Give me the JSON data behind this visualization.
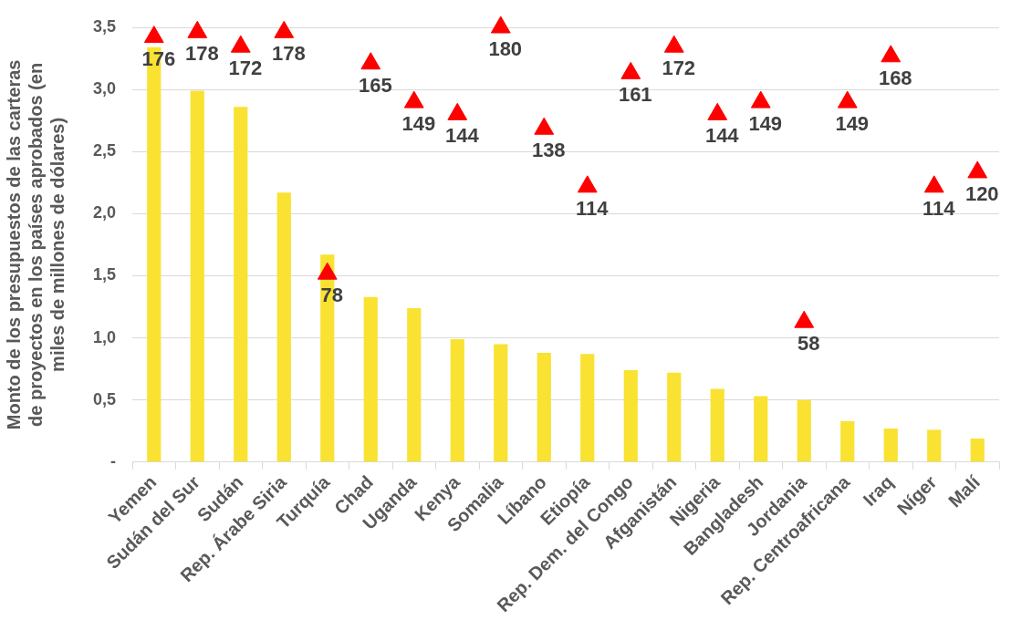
{
  "chart_data": {
    "type": "bar",
    "ylabel": "Monto de los presupuestos de las carteras de proyectos en los países aprobados (en miles de millones de dólares)",
    "categories": [
      "Yemen",
      "Sudán del Sur",
      "Sudán",
      "Rep. Árabe Siria",
      "Turquía",
      "Chad",
      "Uganda",
      "Kenya",
      "Somalia",
      "Líbano",
      "Etiopía",
      "Rep. Dem. del Congo",
      "Afganistán",
      "Nigeria",
      "Bangladesh",
      "Jordania",
      "Rep. Centroafricana",
      "Iraq",
      "Níger",
      "Malí"
    ],
    "series": [
      {
        "type": "bar",
        "color": "#f9e231",
        "values": [
          3.34,
          2.99,
          2.86,
          2.17,
          1.67,
          1.33,
          1.24,
          0.99,
          0.95,
          0.88,
          0.87,
          0.74,
          0.72,
          0.59,
          0.53,
          0.5,
          0.33,
          0.27,
          0.26,
          0.19
        ]
      },
      {
        "type": "scatter",
        "axis": "y2",
        "color": "#ff0000",
        "marker": "triangle",
        "values": [
          176,
          178,
          172,
          178,
          78,
          165,
          149,
          144,
          180,
          138,
          114,
          161,
          172,
          144,
          149,
          58,
          149,
          168,
          114,
          120
        ],
        "value_labels": [
          "176",
          "178",
          "172",
          "178",
          "78",
          "165",
          "149",
          "144",
          "180",
          "138",
          "114",
          "161",
          "172",
          "144",
          "149",
          "58",
          "149",
          "168",
          "114",
          "120"
        ]
      }
    ],
    "ylim": [
      0,
      3.5
    ],
    "yticks": [
      {
        "value": 0,
        "label": "-"
      },
      {
        "value": 0.5,
        "label": "0,5"
      },
      {
        "value": 1,
        "label": "1,0"
      },
      {
        "value": 1.5,
        "label": "1,5"
      },
      {
        "value": 2,
        "label": "2,0"
      },
      {
        "value": 2.5,
        "label": "2,5"
      },
      {
        "value": 3,
        "label": "3,0"
      },
      {
        "value": 3.5,
        "label": "3,5"
      }
    ],
    "y2lim": [
      0,
      180
    ],
    "grid": "y",
    "legend": false
  }
}
